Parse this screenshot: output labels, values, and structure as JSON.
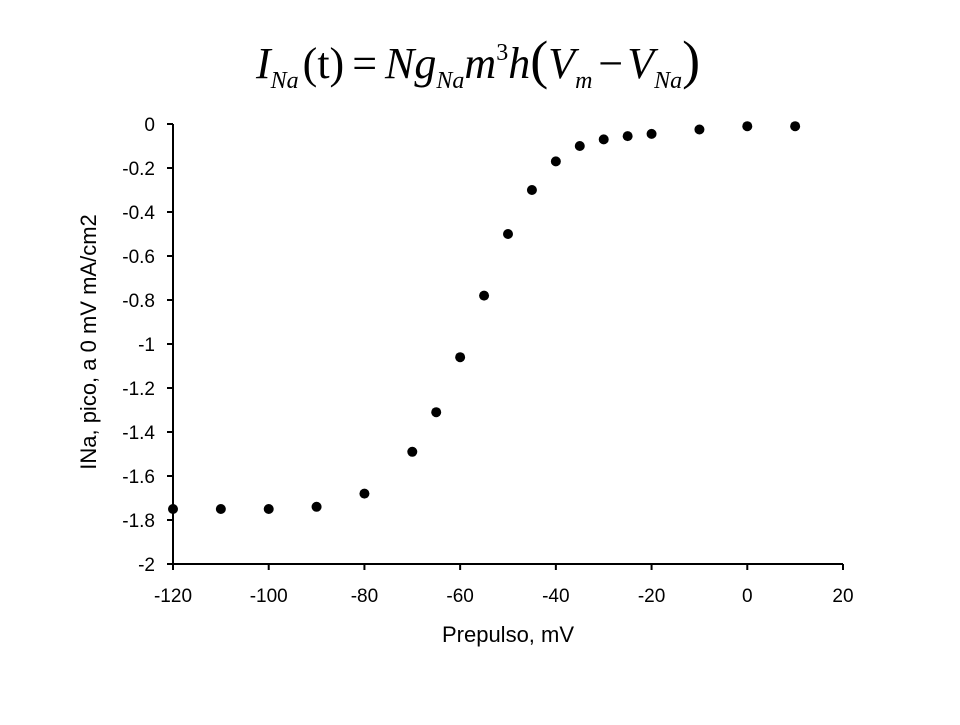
{
  "formula": {
    "lhs_symbol": "I",
    "lhs_sub": "Na",
    "lhs_arg": "(t)",
    "equals": "=",
    "n": "N",
    "g": "g",
    "g_sub": "Na",
    "m": "m",
    "m_exp": "3",
    "h": "h",
    "open_paren": "(",
    "v1": "V",
    "v1_sub": "m",
    "minus": "−",
    "v2": "V",
    "v2_sub": "Na",
    "close_paren": ")"
  },
  "chart_data": {
    "type": "scatter",
    "xlabel": "Prepulso, mV",
    "ylabel": "INa, pico, a 0 mV mA/cm2",
    "xlim": [
      -120,
      20
    ],
    "ylim": [
      -2,
      0
    ],
    "xticks": [
      -120,
      -100,
      -80,
      -60,
      -40,
      -20,
      0,
      20
    ],
    "yticks": [
      0,
      -0.2,
      -0.4,
      -0.6,
      -0.8,
      -1,
      -1.2,
      -1.4,
      -1.6,
      -1.8,
      -2
    ],
    "xtick_labels": [
      "-120",
      "-100",
      "-80",
      "-60",
      "-40",
      "-20",
      "0",
      "20"
    ],
    "ytick_labels": [
      "0",
      "-0.2",
      "-0.4",
      "-0.6",
      "-0.8",
      "-1",
      "-1.2",
      "-1.4",
      "-1.6",
      "-1.8",
      "-2"
    ],
    "grid": false,
    "marker_color": "#000000",
    "series": [
      {
        "x": [
          -120,
          -110,
          -100,
          -90,
          -80,
          -70,
          -65,
          -60,
          -55,
          -50,
          -45,
          -40,
          -35,
          -30,
          -25,
          -20,
          -10,
          0,
          10
        ],
        "y": [
          -1.75,
          -1.75,
          -1.75,
          -1.74,
          -1.68,
          -1.49,
          -1.31,
          -1.06,
          -0.78,
          -0.5,
          -0.3,
          -0.17,
          -0.1,
          -0.07,
          -0.055,
          -0.045,
          -0.025,
          -0.01,
          -0.01
        ]
      }
    ]
  }
}
